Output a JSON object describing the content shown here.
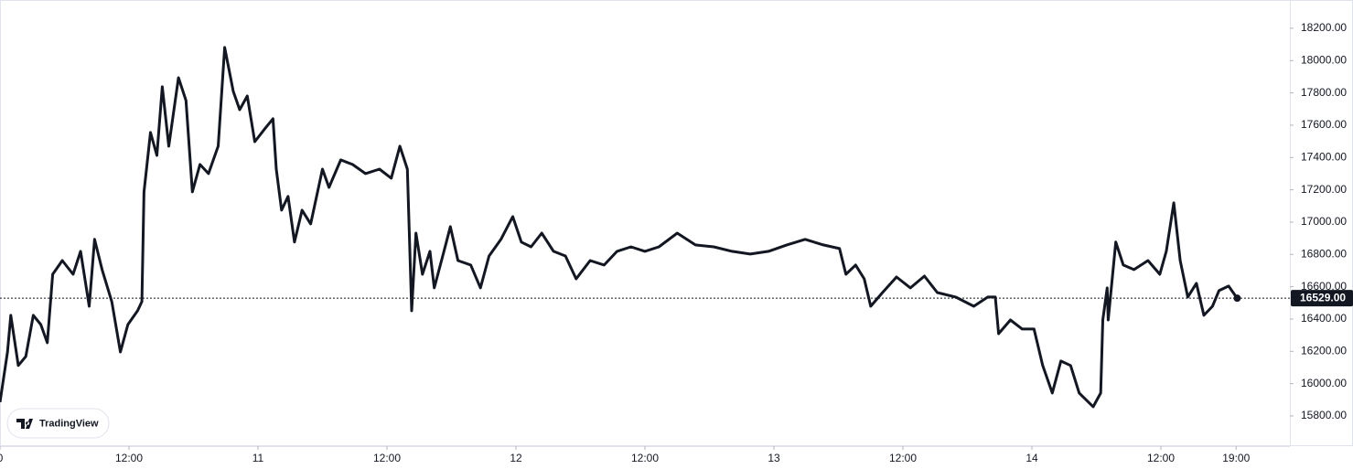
{
  "chart_data": {
    "type": "line",
    "x": [
      0,
      0.7,
      1.0,
      1.7,
      2.4,
      3.1,
      3.8,
      4.4,
      4.9,
      5.8,
      6.8,
      7.5,
      8.3,
      8.8,
      9.5,
      10.4,
      11.2,
      11.9,
      12.8,
      13.2,
      13.4,
      14.0,
      14.6,
      15.1,
      15.7,
      16.6,
      17.3,
      17.9,
      18.6,
      19.4,
      20.3,
      20.9,
      21.7,
      22.3,
      23.0,
      23.7,
      24.7,
      25.4,
      25.7,
      26.2,
      26.8,
      27.4,
      28.1,
      28.9,
      30.0,
      30.6,
      31.7,
      32.8,
      34.0,
      35.3,
      36.4,
      37.2,
      37.9,
      38.3,
      38.7,
      39.3,
      40.0,
      40.4,
      41.3,
      41.9,
      42.6,
      43.8,
      44.7,
      45.5,
      46.6,
      47.7,
      48.5,
      49.4,
      50.4,
      51.5,
      52.6,
      53.6,
      54.9,
      56.2,
      57.4,
      58.7,
      60.0,
      61.3,
      63.0,
      64.7,
      66.4,
      68.1,
      69.8,
      71.5,
      73.2,
      74.9,
      76.6,
      78.1,
      78.7,
      79.6,
      80.4,
      81.0,
      82.1,
      83.4,
      84.7,
      86.0,
      87.2,
      88.9,
      90.6,
      91.9,
      92.6,
      92.9,
      94.0,
      95.1,
      96.2,
      97.0,
      97.9,
      98.7,
      99.6,
      100.4,
      101.7,
      102.4,
      102.6,
      103.0,
      103.1,
      103.8,
      104.5,
      105.5,
      106.8,
      107.9,
      108.5,
      109.2,
      109.8,
      110.5,
      111.3,
      112.0,
      112.8,
      113.4,
      114.3,
      115.1
    ],
    "series": [
      {
        "color": "#131722",
        "values": [
          15885,
          16196,
          16423,
          16112,
          16168,
          16423,
          16366,
          16253,
          16677,
          16762,
          16677,
          16819,
          16479,
          16893,
          16706,
          16508,
          16196,
          16366,
          16451,
          16508,
          17187,
          17555,
          17413,
          17838,
          17470,
          17894,
          17753,
          17187,
          17357,
          17300,
          17470,
          18081,
          17809,
          17696,
          17781,
          17498,
          17583,
          17640,
          17328,
          17074,
          17159,
          16876,
          17074,
          16989,
          17328,
          17215,
          17385,
          17357,
          17300,
          17328,
          17272,
          17470,
          17328,
          16451,
          16932,
          16677,
          16819,
          16593,
          16819,
          16972,
          16762,
          16734,
          16593,
          16790,
          16893,
          17034,
          16876,
          16847,
          16932,
          16819,
          16790,
          16649,
          16762,
          16734,
          16819,
          16847,
          16819,
          16847,
          16932,
          16859,
          16847,
          16819,
          16802,
          16819,
          16859,
          16893,
          16859,
          16836,
          16677,
          16734,
          16649,
          16479,
          16564,
          16660,
          16593,
          16666,
          16564,
          16536,
          16479,
          16536,
          16536,
          16309,
          16394,
          16338,
          16338,
          16112,
          15942,
          16140,
          16112,
          15942,
          15857,
          15942,
          16394,
          16593,
          16394,
          16876,
          16734,
          16706,
          16762,
          16677,
          16819,
          17119,
          16762,
          16536,
          16621,
          16423,
          16479,
          16576,
          16604,
          16529
        ]
      }
    ],
    "xlim": [
      0,
      120
    ],
    "xticks": [
      0,
      {
        "value": 12,
        "label": "12:00"
      },
      {
        "value": 24,
        "label": "11"
      },
      {
        "value": 36,
        "label": "12:00"
      },
      {
        "value": 48,
        "label": "12"
      },
      {
        "value": 60,
        "label": "12:00"
      },
      {
        "value": 72,
        "label": "13"
      },
      {
        "value": 84,
        "label": "12:00"
      },
      {
        "value": 96,
        "label": "14"
      },
      {
        "value": 108,
        "label": "12:00"
      },
      {
        "value": 115,
        "label": "19:00"
      }
    ],
    "ylim": [
      15613,
      18375
    ],
    "yticks": [
      {
        "value": 15800,
        "label": "15800.00"
      },
      {
        "value": 16000,
        "label": "16000.00"
      },
      {
        "value": 16200,
        "label": "16200.00"
      },
      {
        "value": 16400,
        "label": "16400.00"
      },
      {
        "value": 16600,
        "label": "16600.00"
      },
      {
        "value": 16800,
        "label": "16800.00"
      },
      {
        "value": 17000,
        "label": "17000.00"
      },
      {
        "value": 17200,
        "label": "17200.00"
      },
      {
        "value": 17400,
        "label": "17400.00"
      },
      {
        "value": 17600,
        "label": "17600.00"
      },
      {
        "value": 17800,
        "label": "17800.00"
      },
      {
        "value": 18000,
        "label": "18000.00"
      },
      {
        "value": 18200,
        "label": "18200.00"
      }
    ],
    "price_line": {
      "value": 16529,
      "label": "16529.00"
    },
    "logo": "TradingView"
  }
}
